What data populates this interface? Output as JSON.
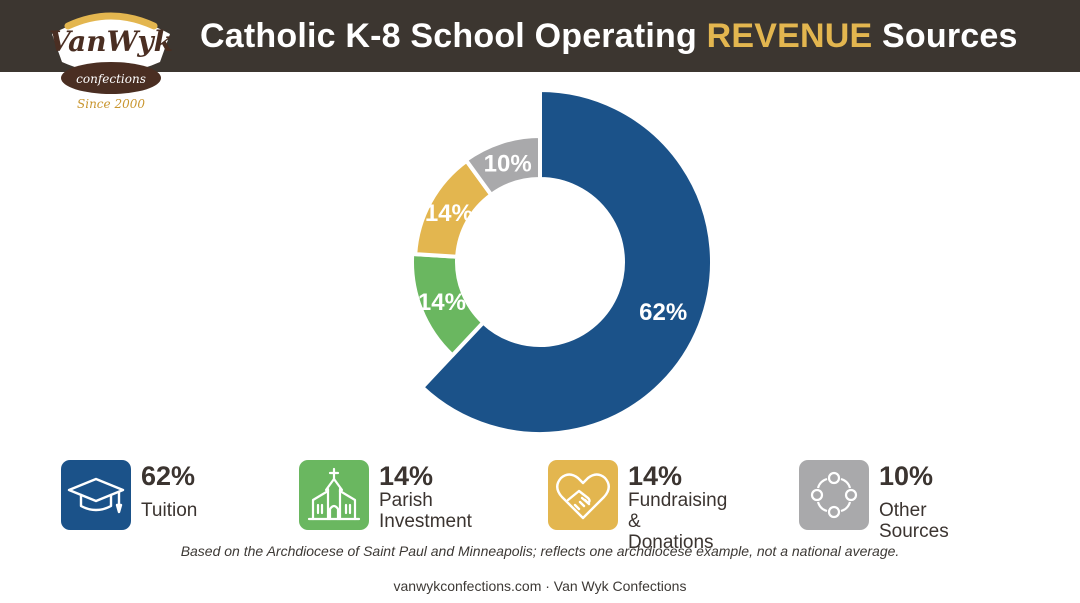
{
  "logo": {
    "wordmark": "VanWyk",
    "sub": "confections",
    "since": "Since 2000"
  },
  "header": {
    "title_part1": "Catholic K-8 School Operating ",
    "title_highlight": "REVENUE",
    "title_part2": " Sources"
  },
  "chart_data": {
    "type": "pie",
    "donut": true,
    "categories": [
      "Tuition",
      "Parish Investment",
      "Fundraising & Donations",
      "Other Sources"
    ],
    "values": [
      62,
      14,
      14,
      10
    ],
    "labels": [
      "62%",
      "14%",
      "14%",
      "10%"
    ],
    "colors": [
      "#1b5289",
      "#6ab760",
      "#e3b64f",
      "#a9a9ab"
    ],
    "title": ""
  },
  "legend": [
    {
      "pct": "62%",
      "label": "Tuition",
      "icon": "graduation-cap-icon",
      "color": "#1b5289"
    },
    {
      "pct": "14%",
      "label": "Parish\nInvestment",
      "icon": "church-icon",
      "color": "#6ab760"
    },
    {
      "pct": "14%",
      "label": "Fundraising\n& Donations",
      "icon": "handshake-heart-icon",
      "color": "#e3b64f"
    },
    {
      "pct": "10%",
      "label": "Other Sources",
      "icon": "circle-of-dots-icon",
      "color": "#a9a9ab"
    }
  ],
  "note": "Based on the Archdiocese of Saint Paul and Minneapolis; reflects one archdiocese example, not a national average.",
  "footer": "vanwykconfections.com · Van Wyk Confections"
}
